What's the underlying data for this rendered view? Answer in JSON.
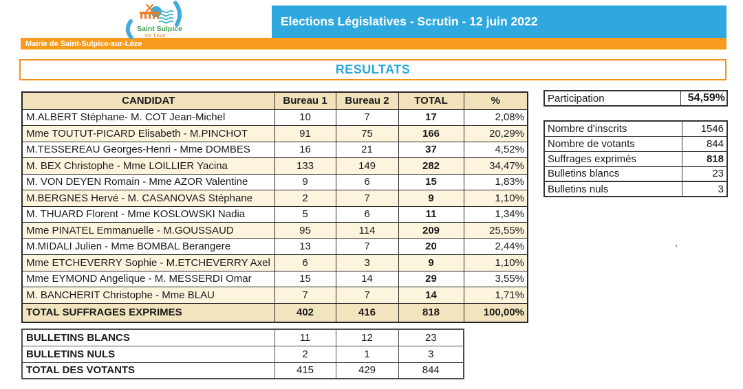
{
  "header": {
    "banner_title": "Elections Législatives - Scrutin - 12 juin 2022",
    "municipality": "Mairie de Saint-Sulpice-sur-Lèze",
    "logo": {
      "line1": "Saint Sulpice",
      "line2": "sur Lèze"
    }
  },
  "page_title": "RESULTATS",
  "colors": {
    "banner_blue": "#2FA8DF",
    "orange": "#F89B1D",
    "title_blue": "#2BA7E0",
    "table_header_fill": "#F2E2BC",
    "row_alt_fill": "#FDF4DE"
  },
  "results_table": {
    "headers": [
      "CANDIDAT",
      "Bureau 1",
      "Bureau 2",
      "TOTAL",
      "%"
    ],
    "rows": [
      {
        "name": "M.ALBERT Stéphane- M. COT Jean-Michel",
        "b1": "10",
        "b2": "7",
        "total": "17",
        "pct": "2,08%"
      },
      {
        "name": "Mme TOUTUT-PICARD Elisabeth - M.PINCHOT",
        "b1": "91",
        "b2": "75",
        "total": "166",
        "pct": "20,29%"
      },
      {
        "name": "M.TESSEREAU Georges-Henri - Mme DOMBES",
        "b1": "16",
        "b2": "21",
        "total": "37",
        "pct": "4,52%"
      },
      {
        "name": "M. BEX Christophe - Mme LOILLIER Yacina",
        "b1": "133",
        "b2": "149",
        "total": "282",
        "pct": "34,47%"
      },
      {
        "name": "M. VON DEYEN Romain - Mme AZOR Valentine",
        "b1": "9",
        "b2": "6",
        "total": "15",
        "pct": "1,83%"
      },
      {
        "name": "M.BERGNES Hervé - M. CASANOVAS Stéphane",
        "b1": "2",
        "b2": "7",
        "total": "9",
        "pct": "1,10%"
      },
      {
        "name": "M. THUARD Florent - Mme KOSLOWSKI Nadia",
        "b1": "5",
        "b2": "6",
        "total": "11",
        "pct": "1,34%"
      },
      {
        "name": "Mme PINATEL Emmanuelle - M.GOUSSAUD",
        "b1": "95",
        "b2": "114",
        "total": "209",
        "pct": "25,55%"
      },
      {
        "name": "M.MIDALI Julien - Mme BOMBAL Berangere",
        "b1": "13",
        "b2": "7",
        "total": "20",
        "pct": "2,44%"
      },
      {
        "name": "Mme ETCHEVERRY Sophie - M.ETCHEVERRY Axel",
        "b1": "6",
        "b2": "3",
        "total": "9",
        "pct": "1,10%"
      },
      {
        "name": "Mme EYMOND Angelique - M. MESSERDI Omar",
        "b1": "15",
        "b2": "14",
        "total": "29",
        "pct": "3,55%"
      },
      {
        "name": "M. BANCHERIT Christophe - Mme BLAU",
        "b1": "7",
        "b2": "7",
        "total": "14",
        "pct": "1,71%"
      }
    ],
    "total_row": {
      "name": "TOTAL SUFFRAGES EXPRIMES",
      "b1": "402",
      "b2": "416",
      "total": "818",
      "pct": "100,00%"
    }
  },
  "ballots_table": {
    "rows": [
      {
        "name": "BULLETINS BLANCS",
        "b1": "11",
        "b2": "12",
        "total": "23"
      },
      {
        "name": "BULLETINS NULS",
        "b1": "2",
        "b2": "1",
        "total": "3"
      },
      {
        "name": "TOTAL DES VOTANTS",
        "b1": "415",
        "b2": "429",
        "total": "844"
      }
    ]
  },
  "participation": {
    "label": "Participation",
    "value": "54,59%"
  },
  "stats_table": {
    "rows": [
      {
        "label": "Nombre d'inscrits",
        "value": "1546",
        "bold": false
      },
      {
        "label": "Nombre de votants",
        "value": "844",
        "bold": false
      },
      {
        "label": "Suffrages exprimés",
        "value": "818",
        "bold": true
      },
      {
        "label": "Bulletins blancs",
        "value": "23",
        "bold": false
      },
      {
        "label": "Bulletins nuls",
        "value": "3",
        "bold": false
      }
    ]
  },
  "stray_text": ","
}
